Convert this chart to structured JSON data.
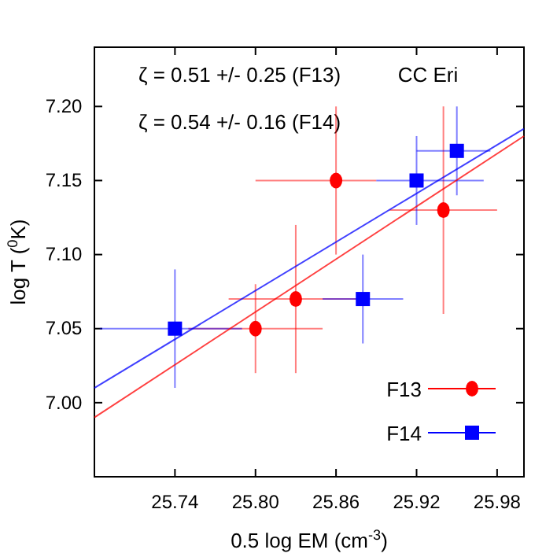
{
  "chart_data": {
    "type": "scatter",
    "xlabel": "0.5 log EM (cm$^{-3}$)",
    "ylabel": "log T ($^{0}$K)",
    "annotations": [
      "ζ = 0.51 +/- 0.25 (F13)",
      "ζ = 0.54 +/- 0.16 (F14)",
      "CC Eri"
    ],
    "xlim": [
      25.68,
      26.0
    ],
    "xticks": [
      25.74,
      {
        "value": 25.8,
        "label": "25.80"
      },
      25.86,
      25.92,
      25.98
    ],
    "ylim": [
      6.95,
      7.24
    ],
    "yticks": [
      {
        "value": 7.0,
        "label": "7.00"
      },
      {
        "value": 7.05,
        "label": "7.05"
      },
      {
        "value": 7.1,
        "label": "7.10"
      },
      {
        "value": 7.15,
        "label": "7.15"
      },
      {
        "value": 7.2,
        "label": "7.20"
      }
    ],
    "legend": "bottom right",
    "grid": false,
    "series": [
      {
        "name": "F13",
        "color": "#ff0000",
        "marker": "circle",
        "x": [
          25.8,
          25.83,
          25.86,
          25.94
        ],
        "values": [
          7.05,
          7.07,
          7.15,
          7.13
        ],
        "errors": [
          0.03,
          0.05,
          0.05,
          0.07
        ],
        "xerrors": [
          0.05,
          0.05,
          [
            25.8,
            25.89
          ],
          0.04
        ]
      },
      {
        "name": "F14",
        "color": "#0000ff",
        "marker": "square",
        "x": [
          25.74,
          25.88,
          25.92,
          25.95
        ],
        "values": [
          7.05,
          7.07,
          7.15,
          7.17
        ],
        "errors": [
          0.04,
          0.03,
          0.03,
          0.03
        ],
        "xerrors": [
          [
            25.684,
            25.79
          ],
          [
            25.85,
            25.91
          ],
          [
            25.89,
            25.97
          ],
          [
            25.92,
            25.975
          ]
        ]
      },
      {
        "type": "line",
        "color": "#ff0000",
        "x": [
          25.68,
          26.0
        ],
        "values": [
          6.99,
          7.18
        ]
      },
      {
        "type": "line",
        "color": "#0000ff",
        "x": [
          25.68,
          26.0
        ],
        "values": [
          7.01,
          7.185
        ]
      }
    ]
  }
}
